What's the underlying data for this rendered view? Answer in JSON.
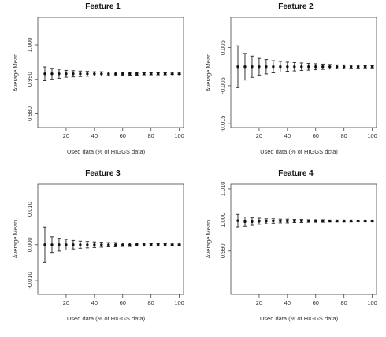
{
  "chart_data": [
    {
      "type": "scatter",
      "title": "Feature 1",
      "xlabel": "Used data (% of HIGGS data)",
      "ylabel": "Average Mean",
      "xlim": [
        0,
        103
      ],
      "ylim": [
        0.976,
        1.008
      ],
      "xticks": [
        "20",
        "40",
        "60",
        "80",
        "100"
      ],
      "yticks": [
        "0.980",
        "0.990",
        "1.000"
      ],
      "x": [
        5,
        10,
        15,
        20,
        25,
        30,
        35,
        40,
        45,
        50,
        55,
        60,
        65,
        70,
        75,
        80,
        85,
        90,
        95,
        100
      ],
      "y": [
        0.9916,
        0.9916,
        0.9916,
        0.9916,
        0.9916,
        0.9916,
        0.9916,
        0.9916,
        0.9916,
        0.9916,
        0.9916,
        0.9916,
        0.9916,
        0.9916,
        0.9916,
        0.9916,
        0.9916,
        0.9916,
        0.9916,
        0.9916
      ],
      "err": [
        0.002,
        0.0016,
        0.0013,
        0.001,
        0.0009,
        0.0008,
        0.0007,
        0.0006,
        0.0006,
        0.0005,
        0.0005,
        0.0004,
        0.0004,
        0.0004,
        0.0003,
        0.0003,
        0.0003,
        0.0003,
        0.0002,
        0.0002
      ]
    },
    {
      "type": "scatter",
      "title": "Feature 2",
      "xlabel": "Used data (% of HIGGS dcta)",
      "ylabel": "Average Mean",
      "xlim": [
        0,
        103
      ],
      "ylim": [
        -0.016,
        0.013
      ],
      "xticks": [
        "20",
        "40",
        "60",
        "80",
        "100"
      ],
      "yticks": [
        "-0.015",
        "-0.005",
        "0.005"
      ],
      "x": [
        5,
        10,
        15,
        20,
        25,
        30,
        35,
        40,
        45,
        50,
        55,
        60,
        65,
        70,
        75,
        80,
        85,
        90,
        95,
        100
      ],
      "y": [
        0,
        0,
        0,
        0,
        0,
        0,
        0,
        0,
        0,
        0,
        0,
        0,
        0,
        0,
        0,
        0,
        0,
        0,
        0,
        0
      ],
      "err": [
        0.0055,
        0.0035,
        0.0028,
        0.0022,
        0.0019,
        0.0016,
        0.0014,
        0.0012,
        0.0011,
        0.001,
        0.0009,
        0.0008,
        0.0007,
        0.0006,
        0.0005,
        0.0005,
        0.0004,
        0.0004,
        0.0003,
        0.0003
      ]
    },
    {
      "type": "scatter",
      "title": "Feature 3",
      "xlabel": "Used data (% of HIGGS data)",
      "ylabel": "Average Mean",
      "xlim": [
        0,
        103
      ],
      "ylim": [
        -0.014,
        0.017
      ],
      "xticks": [
        "20",
        "40",
        "60",
        "80",
        "100"
      ],
      "yticks": [
        "-0.010",
        "0.000",
        "0.010"
      ],
      "x": [
        5,
        10,
        15,
        20,
        25,
        30,
        35,
        40,
        45,
        50,
        55,
        60,
        65,
        70,
        75,
        80,
        85,
        90,
        95,
        100
      ],
      "y": [
        0,
        0,
        0,
        0,
        0,
        0,
        0,
        0,
        0,
        0,
        0,
        0,
        0,
        0,
        0,
        0,
        0,
        0,
        0,
        0
      ],
      "err": [
        0.005,
        0.0022,
        0.0018,
        0.0015,
        0.0012,
        0.001,
        0.0009,
        0.0008,
        0.0007,
        0.0006,
        0.0006,
        0.0005,
        0.0005,
        0.0004,
        0.0004,
        0.0003,
        0.0003,
        0.0003,
        0.0002,
        0.0002
      ]
    },
    {
      "type": "scatter",
      "title": "Feature 4",
      "xlabel": "Used data (% of HIGGS data)",
      "ylabel": "Average Mean",
      "xlim": [
        0,
        103
      ],
      "ylim": [
        0.976,
        1.0115
      ],
      "xticks": [
        "20",
        "40",
        "60",
        "80",
        "100"
      ],
      "yticks": [
        "0.990",
        "1.000",
        "1.010"
      ],
      "x": [
        5,
        10,
        15,
        20,
        25,
        30,
        35,
        40,
        45,
        50,
        55,
        60,
        65,
        70,
        75,
        80,
        85,
        90,
        95,
        100
      ],
      "y": [
        0.9998,
        0.9995,
        0.9995,
        0.9996,
        0.9996,
        0.9997,
        0.9997,
        0.9997,
        0.9997,
        0.9997,
        0.9997,
        0.9997,
        0.9997,
        0.9997,
        0.9997,
        0.9997,
        0.9997,
        0.9997,
        0.9997,
        0.9997
      ],
      "err": [
        0.002,
        0.0015,
        0.0012,
        0.001,
        0.0008,
        0.0007,
        0.0006,
        0.0006,
        0.0005,
        0.0005,
        0.0004,
        0.0004,
        0.0004,
        0.0003,
        0.0003,
        0.0003,
        0.0003,
        0.0002,
        0.0002,
        0.0002
      ]
    }
  ]
}
